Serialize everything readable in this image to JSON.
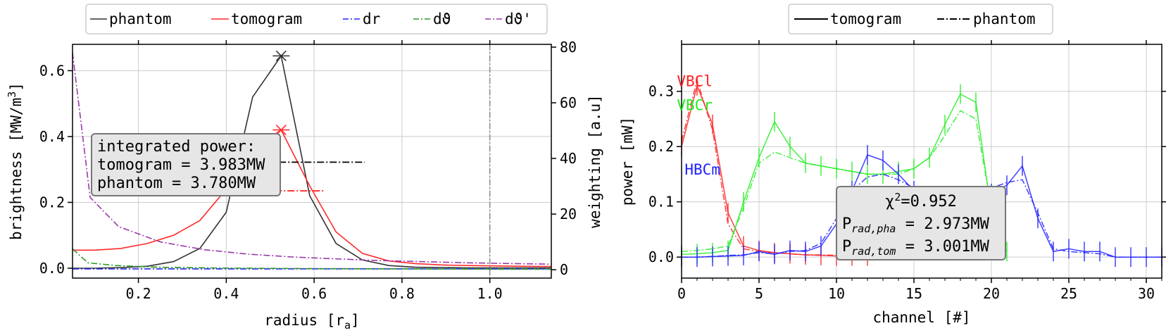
{
  "colors": {
    "phantom": "#333333",
    "tomogram": "#ff2a2a",
    "dr": "#2222ff",
    "dtheta": "#2a9a2a",
    "dtheta_prime": "#9a3aaa",
    "vbcl": "#ff2020",
    "vbcr": "#22ee22",
    "hbcm": "#2020ff"
  },
  "chart_data": [
    {
      "type": "line",
      "xlabel": "radius [r",
      "xlabel_sub": "a",
      "xlabel_close": "]",
      "ylabel": "brightness [MW/m",
      "ylabel_sup": "3",
      "ylabel_close": "]",
      "ylabel_right": "weighting [a.u]",
      "xlim": [
        0.05,
        1.14
      ],
      "ylim": [
        -0.03,
        0.68
      ],
      "ylim_right": [
        -3,
        81
      ],
      "xticks": [
        "0.2",
        "0.4",
        "0.6",
        "0.8",
        "1.0"
      ],
      "yticks": [
        "0.0",
        "0.2",
        "0.4",
        "0.6"
      ],
      "yticks_right": [
        "0",
        "20",
        "40",
        "60",
        "80"
      ],
      "legend": {
        "placement": "top",
        "entries": [
          "phantom",
          "tomogram",
          "dr",
          "dϑ",
          "dϑ'"
        ]
      },
      "series": [
        {
          "name": "phantom",
          "axis": "left",
          "x": [
            0.05,
            0.1,
            0.16,
            0.22,
            0.28,
            0.34,
            0.4,
            0.46,
            0.525,
            0.59,
            0.65,
            0.71,
            0.77,
            0.83,
            0.89,
            0.95,
            1.01,
            1.07,
            1.14
          ],
          "y": [
            0.0,
            0.0,
            0.002,
            0.006,
            0.02,
            0.06,
            0.17,
            0.52,
            0.645,
            0.22,
            0.075,
            0.025,
            0.008,
            0.003,
            0.002,
            0.001,
            0.001,
            0.001,
            0.001
          ]
        },
        {
          "name": "tomogram",
          "axis": "left",
          "x": [
            0.05,
            0.1,
            0.16,
            0.22,
            0.28,
            0.34,
            0.4,
            0.46,
            0.525,
            0.59,
            0.65,
            0.71,
            0.77,
            0.83,
            0.89,
            0.95,
            1.01,
            1.07,
            1.14
          ],
          "y": [
            0.055,
            0.055,
            0.06,
            0.075,
            0.1,
            0.145,
            0.24,
            0.36,
            0.42,
            0.25,
            0.11,
            0.045,
            0.022,
            0.014,
            0.01,
            0.008,
            0.007,
            0.006,
            0.005
          ]
        },
        {
          "name": "dr",
          "axis": "right",
          "x": [
            0.05,
            0.2,
            0.4,
            0.6,
            0.8,
            1.0,
            1.14
          ],
          "y": [
            0.3,
            0.3,
            0.3,
            0.3,
            0.3,
            0.3,
            0.3
          ]
        },
        {
          "name": "dϑ",
          "axis": "right",
          "x": [
            0.05,
            0.085,
            0.15,
            0.25,
            0.4,
            0.6,
            0.8,
            1.0,
            1.14
          ],
          "y": [
            7.5,
            2.5,
            1.5,
            0.9,
            0.6,
            0.4,
            0.3,
            0.2,
            0.2
          ]
        },
        {
          "name": "dϑ'",
          "axis": "right",
          "x": [
            0.05,
            0.09,
            0.155,
            0.25,
            0.35,
            0.45,
            0.55,
            0.65,
            0.75,
            0.85,
            0.95,
            1.05,
            1.14
          ],
          "y": [
            78,
            26,
            15.5,
            10,
            7.2,
            5.6,
            4.6,
            3.9,
            3.3,
            2.9,
            2.5,
            2.2,
            2.0
          ]
        }
      ],
      "markers": {
        "phantom_peak": {
          "x": 0.525,
          "y": 0.645
        },
        "tomogram_peak": {
          "x": 0.525,
          "y": 0.42
        },
        "phantom_hline": {
          "x": [
            0.52,
            0.715
          ],
          "y": 0.322
        },
        "tomogram_hline": {
          "x": [
            0.395,
            0.625
          ],
          "y": 0.235
        },
        "vline_x": 1.0
      },
      "annotation": {
        "line1": "integrated power:",
        "line2": "tomogram = 3.983MW",
        "line3": "phantom = 3.780MW"
      }
    },
    {
      "type": "line",
      "xlabel": "channel [#]",
      "ylabel": "power [mW]",
      "xlim": [
        0,
        31
      ],
      "ylim": [
        -0.038,
        0.385
      ],
      "xticks": [
        "0",
        "5",
        "10",
        "15",
        "20",
        "25",
        "30"
      ],
      "yticks": [
        "0.0",
        "0.1",
        "0.2",
        "0.3"
      ],
      "legend": {
        "placement": "top",
        "entries": [
          "tomogram",
          "phantom"
        ]
      },
      "camera_labels": [
        {
          "text": "VBCl",
          "x": -0.3,
          "y": 0.318
        },
        {
          "text": "VBCr",
          "x": -0.3,
          "y": 0.275
        },
        {
          "text": "HBCm",
          "x": 0.2,
          "y": 0.158
        }
      ],
      "series": [
        {
          "name": "VBCl tomogram",
          "x": [
            0,
            1,
            2,
            3,
            4,
            5,
            6,
            7,
            8,
            9,
            10,
            11,
            12
          ],
          "y": [
            0.2,
            0.31,
            0.24,
            0.08,
            0.02,
            0.012,
            0.008,
            0.006,
            0.004,
            0.003,
            0.002,
            0.002,
            0.002
          ]
        },
        {
          "name": "VBCl phantom",
          "x": [
            0,
            1,
            2,
            3,
            4,
            5,
            6,
            7,
            8,
            9,
            10,
            11,
            12
          ],
          "y": [
            0.21,
            0.32,
            0.23,
            0.06,
            0.015,
            0.01,
            0.008,
            0.006,
            0.004,
            0.004,
            0.003,
            0.002,
            0.002
          ]
        },
        {
          "name": "VBCr tomogram",
          "x": [
            0,
            1,
            2,
            3,
            4,
            5,
            6,
            7,
            8,
            9,
            10,
            11,
            12,
            13,
            14,
            15,
            16,
            17,
            18,
            19,
            20,
            21
          ],
          "y": [
            0.005,
            0.006,
            0.008,
            0.012,
            0.1,
            0.18,
            0.245,
            0.2,
            0.17,
            0.165,
            0.16,
            0.155,
            0.15,
            0.15,
            0.155,
            0.16,
            0.18,
            0.24,
            0.295,
            0.28,
            0.08,
            0.01
          ]
        },
        {
          "name": "VBCr phantom",
          "x": [
            0,
            1,
            2,
            3,
            4,
            5,
            6,
            7,
            8,
            9,
            10,
            11,
            12,
            13,
            14,
            15,
            16,
            17,
            18,
            19,
            20,
            21
          ],
          "y": [
            0.01,
            0.012,
            0.015,
            0.02,
            0.09,
            0.17,
            0.19,
            0.18,
            0.17,
            0.165,
            0.16,
            0.155,
            0.15,
            0.15,
            0.15,
            0.16,
            0.18,
            0.22,
            0.265,
            0.25,
            0.09,
            0.02
          ]
        },
        {
          "name": "HBCm tomogram",
          "x": [
            0,
            1,
            2,
            3,
            4,
            5,
            6,
            7,
            8,
            9,
            10,
            11,
            12,
            13,
            14,
            15,
            16,
            17,
            18,
            19,
            20,
            21,
            22,
            23,
            24,
            25,
            26,
            27,
            28,
            29,
            30,
            31
          ],
          "y": [
            0.0,
            0.0,
            0.001,
            0.002,
            0.003,
            0.01,
            0.005,
            0.012,
            0.01,
            0.02,
            0.06,
            0.12,
            0.185,
            0.175,
            0.15,
            0.12,
            0.1,
            0.09,
            0.09,
            0.1,
            0.115,
            0.13,
            0.165,
            0.07,
            0.01,
            0.015,
            0.01,
            0.01,
            0.0,
            0.0,
            0.0,
            0.0
          ]
        },
        {
          "name": "HBCm phantom",
          "x": [
            0,
            1,
            2,
            3,
            4,
            5,
            6,
            7,
            8,
            9,
            10,
            11,
            12,
            13,
            14,
            15,
            16,
            17,
            18,
            19,
            20,
            21,
            22,
            23,
            24,
            25,
            26,
            27,
            28,
            29,
            30,
            31
          ],
          "y": [
            0.0,
            0.0,
            0.001,
            0.003,
            0.004,
            0.008,
            0.006,
            0.01,
            0.012,
            0.025,
            0.07,
            0.12,
            0.145,
            0.15,
            0.14,
            0.125,
            0.115,
            0.11,
            0.11,
            0.115,
            0.125,
            0.135,
            0.14,
            0.08,
            0.015,
            0.01,
            0.008,
            0.006,
            0.0,
            0.0,
            0.0,
            0.0
          ]
        }
      ],
      "annotation": {
        "chi_sym": "χ",
        "chi_sup": "2",
        "chi_val": "=0.952",
        "p_sym": "P",
        "pha_sub": "rad,pha",
        "pha_val": " = 2.973MW",
        "tom_sub": "rad,tom",
        "tom_val": " = 3.001MW"
      }
    }
  ]
}
